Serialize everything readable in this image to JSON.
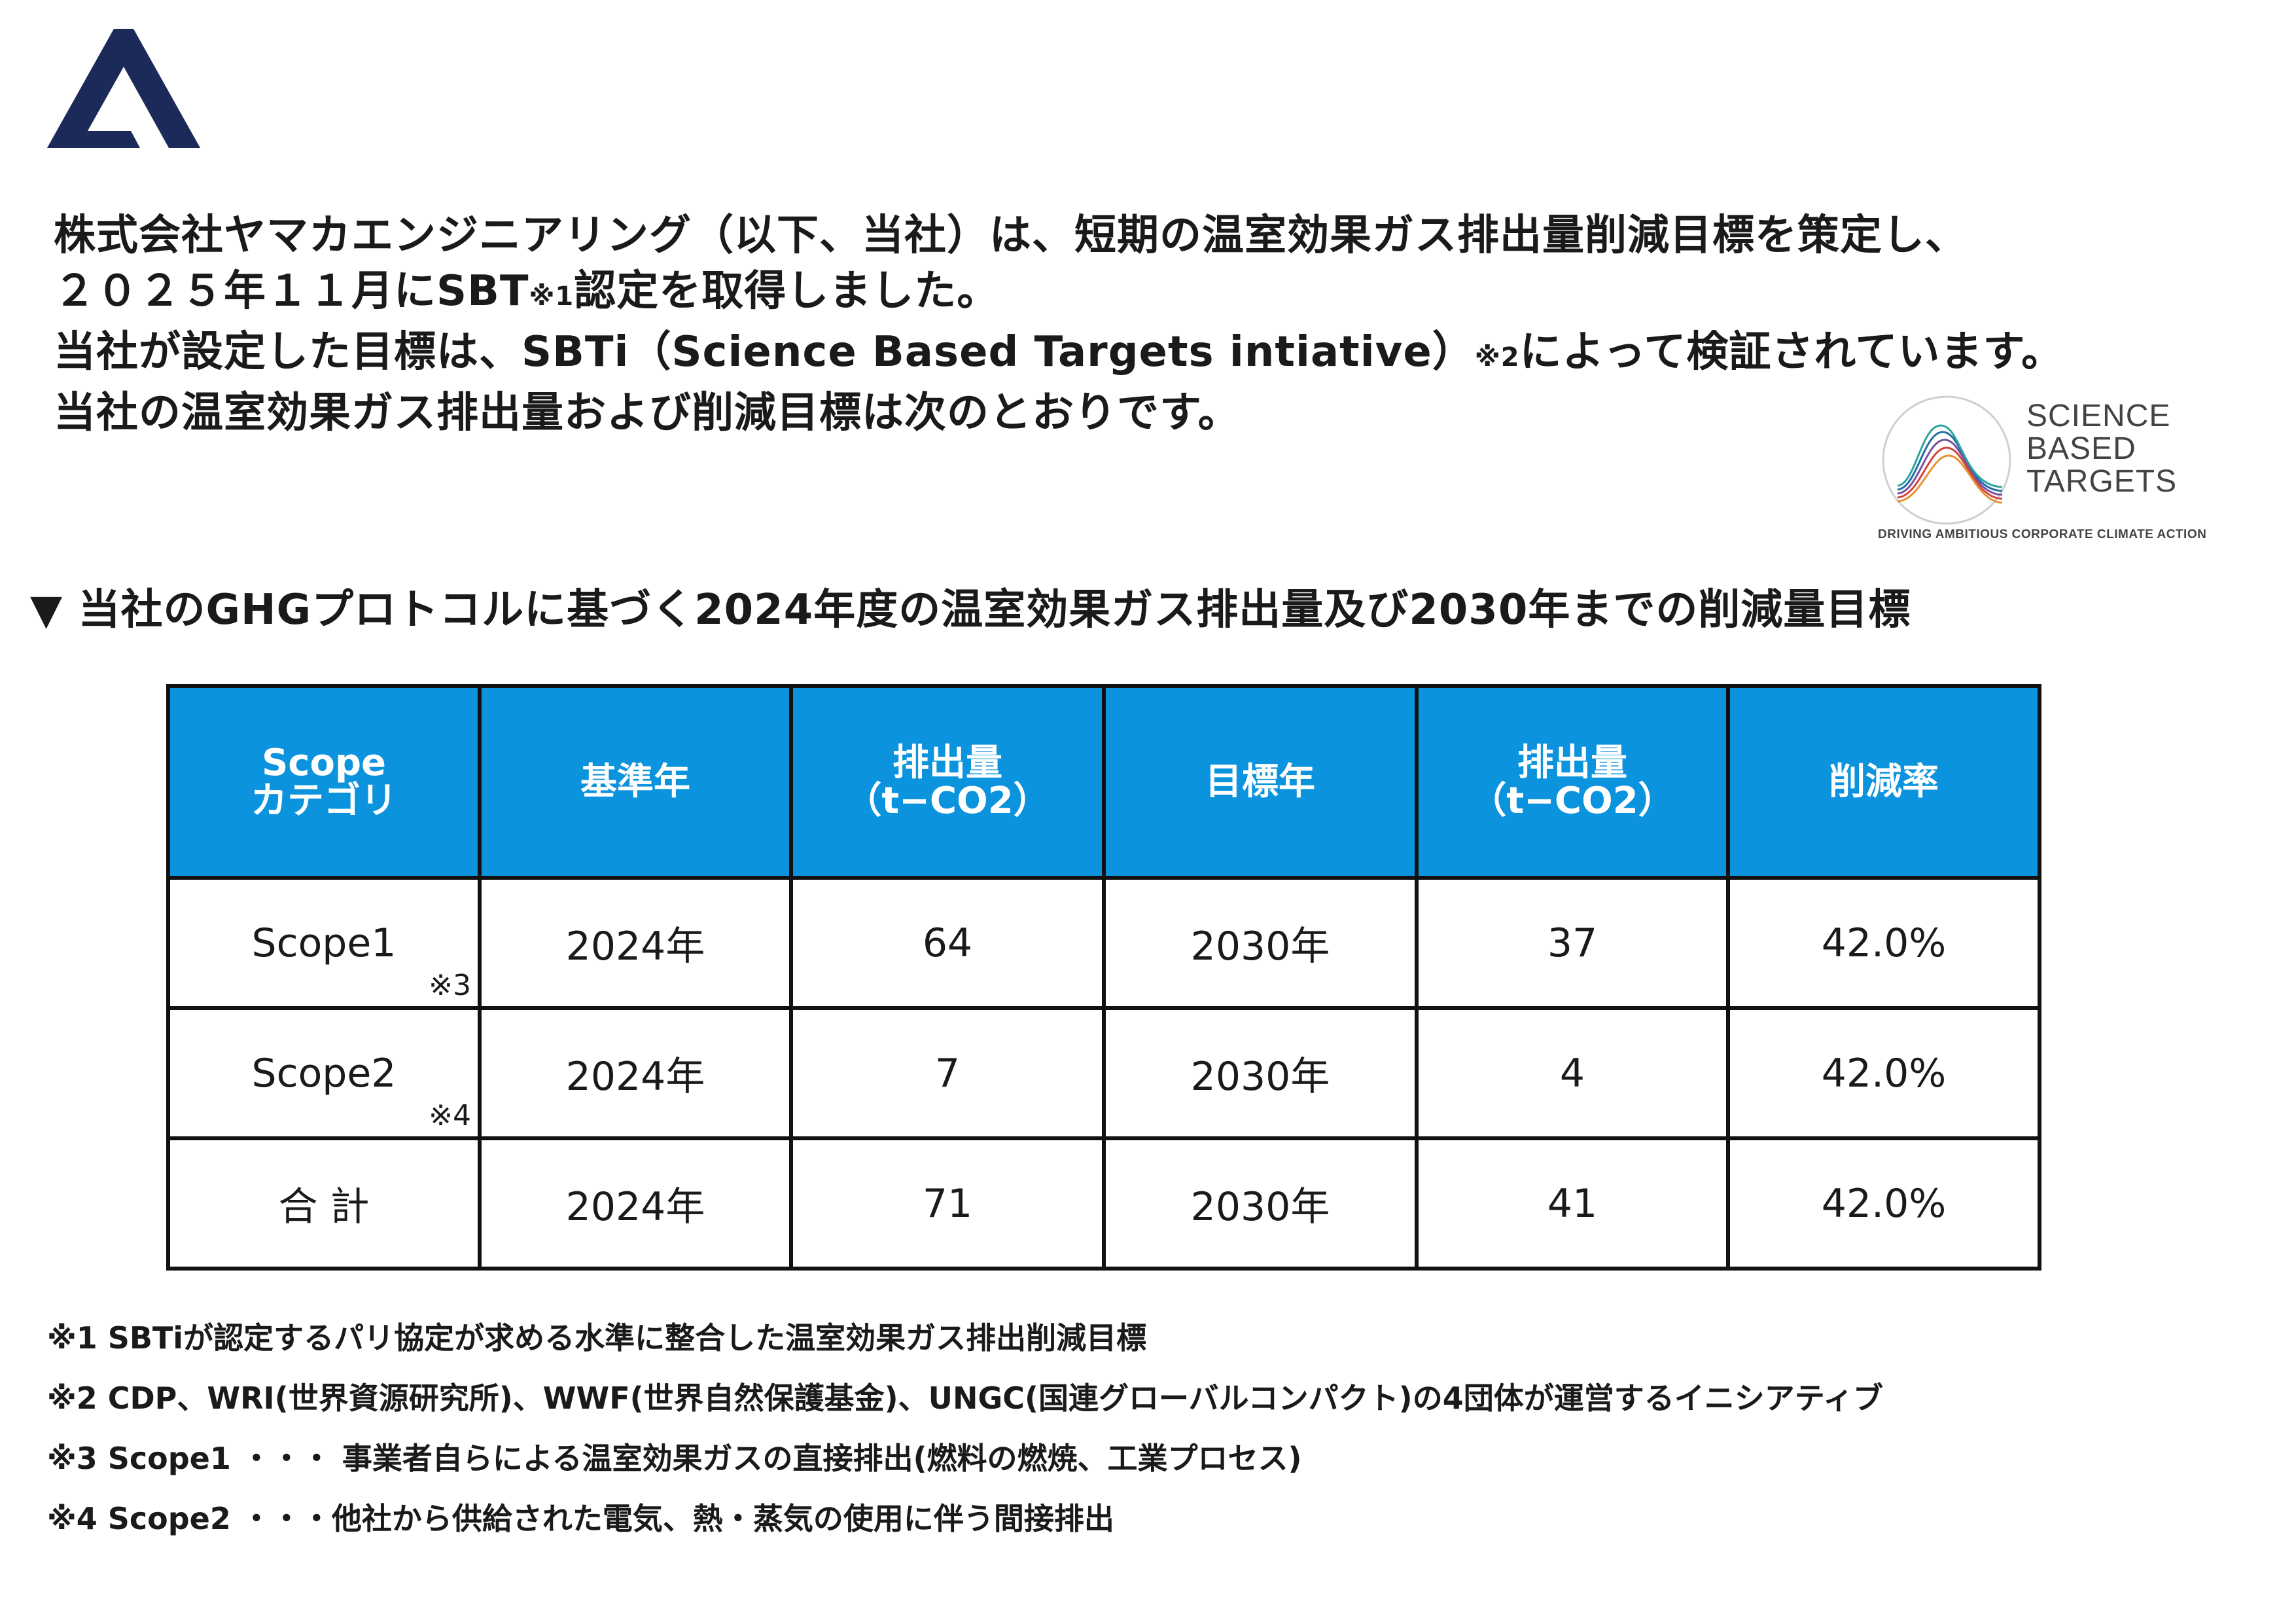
{
  "logo": {
    "name": "yamaka-logo-icon",
    "color": "#1c2a5a"
  },
  "intro": [
    "株式会社ヤマカエンジニアリング（以下、当社）は、短期の温室効果ガス排出量削減目標を策定し、",
    [
      "２０２５年１１月にSBT",
      "※1",
      "認定を取得しました。"
    ],
    [
      "当社が設定した目標は、SBTi（Science Based Targets intiative）",
      "※2",
      "によって検証されています。"
    ],
    "当社の温室効果ガス排出量および削減目標は次のとおりです。"
  ],
  "sbt_logo": {
    "word1": "SCIENCE",
    "word2": "BASED",
    "word3": "TARGETS",
    "tagline": "DRIVING AMBITIOUS CORPORATE CLIMATE ACTION",
    "colors": [
      "#1f6fa8",
      "#7a4fa0",
      "#d2453b",
      "#e8912f",
      "#2aa39a"
    ]
  },
  "heading": "▼ 当社のGHGプロトコルに基づく2024年度の温室効果ガス排出量及び2030年までの削減量目標",
  "table": {
    "header_color": "#0b93dd",
    "headers": [
      [
        "Scope",
        "カテゴリ"
      ],
      [
        "基準年"
      ],
      [
        "排出量",
        "（t−CO2）"
      ],
      [
        "目標年"
      ],
      [
        "排出量",
        "（t−CO2）"
      ],
      [
        "削減率"
      ]
    ],
    "rows": [
      {
        "scope": "Scope1",
        "note": "※3",
        "base_year": "2024年",
        "emission_base": "64",
        "target_year": "2030年",
        "emission_target": "37",
        "reduction": "42.0%"
      },
      {
        "scope": "Scope2",
        "note": "※4",
        "base_year": "2024年",
        "emission_base": "7",
        "target_year": "2030年",
        "emission_target": "4",
        "reduction": "42.0%"
      },
      {
        "scope": "合 計",
        "note": "",
        "base_year": "2024年",
        "emission_base": "71",
        "target_year": "2030年",
        "emission_target": "41",
        "reduction": "42.0%"
      }
    ]
  },
  "notes": [
    "※1  SBTiが認定するパリ協定が求める水準に整合した温室効果ガス排出削減目標",
    "※2  CDP、WRI(世界資源研究所)、WWF(世界自然保護基金)、UNGC(国連グローバルコンパクト)の4団体が運営するイニシアティブ",
    "※3  Scope1 ・・・ 事業者自らによる温室効果ガスの直接排出(燃料の燃焼、工業プロセス)",
    "※4  Scope2 ・・・他社から供給された電気、熱・蒸気の使用に伴う間接排出"
  ]
}
